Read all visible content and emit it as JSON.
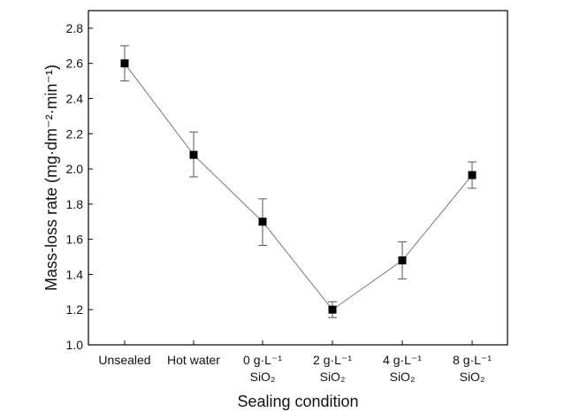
{
  "chart_data": {
    "type": "line",
    "title": "",
    "xlabel": "Sealing condition",
    "ylabel": "Mass-loss rate (mg·dm⁻²·min⁻¹)",
    "ylim": [
      1.0,
      2.9
    ],
    "yticks": [
      "1.0",
      "1.2",
      "1.4",
      "1.6",
      "1.8",
      "2.0",
      "2.2",
      "2.4",
      "2.6",
      "2.8"
    ],
    "categories": [
      {
        "line1": "Unsealed",
        "line2": ""
      },
      {
        "line1": "Hot water",
        "line2": ""
      },
      {
        "line1": "0 g·L⁻¹",
        "line2": "SiO₂"
      },
      {
        "line1": "2 g·L⁻¹",
        "line2": "SiO₂"
      },
      {
        "line1": "4 g·L⁻¹",
        "line2": "SiO₂"
      },
      {
        "line1": "8 g·L⁻¹",
        "line2": "SiO₂"
      }
    ],
    "series": [
      {
        "name": "Mass-loss rate",
        "values": [
          2.6,
          2.08,
          1.7,
          1.2,
          1.48,
          1.965
        ],
        "err_low": [
          2.5,
          1.955,
          1.565,
          1.155,
          1.375,
          1.89
        ],
        "err_high": [
          2.7,
          2.21,
          1.83,
          1.245,
          1.585,
          2.04
        ]
      }
    ],
    "colors": {
      "line": "#777777",
      "marker": "#000000",
      "axis": "#000000"
    }
  }
}
